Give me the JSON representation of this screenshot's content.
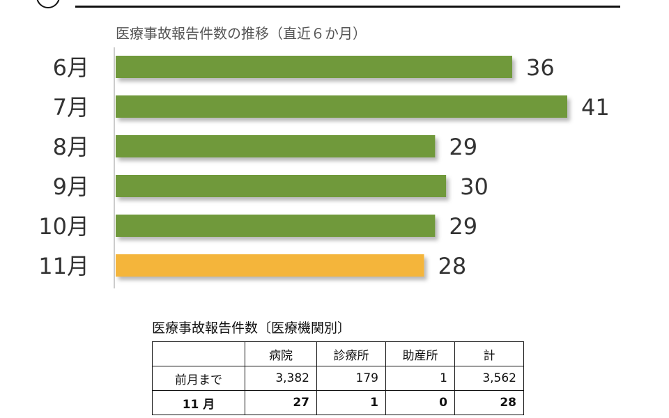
{
  "chart_data": {
    "type": "bar",
    "orientation": "horizontal",
    "title": "医療事故報告件数の推移（直近６か月）",
    "categories": [
      "6月",
      "7月",
      "8月",
      "9月",
      "10月",
      "11月"
    ],
    "values": [
      36,
      41,
      29,
      30,
      29,
      28
    ],
    "highlight_index": 5,
    "colors": {
      "bar": "#70993a",
      "highlight": "#f4b53b",
      "axis": "#cccccc"
    },
    "xlim": [
      0,
      41
    ],
    "grid": false,
    "data_labels": true
  },
  "table": {
    "title": "医療事故報告件数〔医療機関別〕",
    "headers": [
      "",
      "病院",
      "診療所",
      "助産所",
      "計"
    ],
    "rows": [
      {
        "label": "前月まで",
        "values": [
          "3,382",
          "179",
          "1",
          "3,562"
        ]
      },
      {
        "label": "11 月",
        "values": [
          "27",
          "1",
          "0",
          "28"
        ]
      }
    ]
  }
}
